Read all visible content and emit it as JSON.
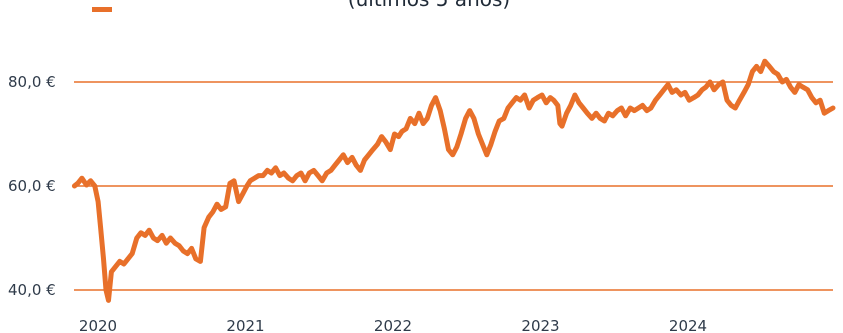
{
  "chart_data": {
    "type": "line",
    "title": "(últimos 5 años)",
    "xlabel": "",
    "ylabel": "",
    "x_ticks": [
      "2020",
      "2021",
      "2022",
      "2023",
      "2024"
    ],
    "y_ticks": [
      "40,0 €",
      "60,0 €",
      "80,0 €"
    ],
    "y_tick_values": [
      40,
      60,
      80
    ],
    "ylim": [
      38.5,
      91
    ],
    "xlim": [
      "2020-01-01",
      "2024-12-31"
    ],
    "grid": "horizontal",
    "legend": "top-left",
    "series": [
      {
        "name": "",
        "color": "#E8702A",
        "x": [
          "2020-01-02",
          "2020-01-10",
          "2020-01-20",
          "2020-01-31",
          "2020-02-10",
          "2020-02-20",
          "2020-02-28",
          "2020-03-05",
          "2020-03-12",
          "2020-03-18",
          "2020-03-24",
          "2020-03-31",
          "2020-04-10",
          "2020-04-20",
          "2020-04-30",
          "2020-05-10",
          "2020-05-20",
          "2020-05-31",
          "2020-06-10",
          "2020-06-20",
          "2020-06-30",
          "2020-07-10",
          "2020-07-20",
          "2020-07-31",
          "2020-08-10",
          "2020-08-20",
          "2020-08-31",
          "2020-09-10",
          "2020-09-20",
          "2020-09-30",
          "2020-10-10",
          "2020-10-20",
          "2020-10-31",
          "2020-11-09",
          "2020-11-20",
          "2020-11-30",
          "2020-12-10",
          "2020-12-20",
          "2020-12-31",
          "2021-01-10",
          "2021-01-20",
          "2021-01-31",
          "2021-02-10",
          "2021-02-20",
          "2021-02-28",
          "2021-03-10",
          "2021-03-20",
          "2021-03-31",
          "2021-04-10",
          "2021-04-20",
          "2021-04-30",
          "2021-05-10",
          "2021-05-20",
          "2021-05-31",
          "2021-06-10",
          "2021-06-20",
          "2021-06-30",
          "2021-07-10",
          "2021-07-20",
          "2021-07-31",
          "2021-08-10",
          "2021-08-20",
          "2021-08-31",
          "2021-09-10",
          "2021-09-20",
          "2021-09-30",
          "2021-10-10",
          "2021-10-20",
          "2021-10-31",
          "2021-11-10",
          "2021-11-20",
          "2021-11-30",
          "2021-12-10",
          "2021-12-20",
          "2021-12-31",
          "2022-01-10",
          "2022-01-20",
          "2022-01-31",
          "2022-02-10",
          "2022-02-20",
          "2022-02-28",
          "2022-03-10",
          "2022-03-20",
          "2022-03-31",
          "2022-04-10",
          "2022-04-20",
          "2022-04-30",
          "2022-05-10",
          "2022-05-20",
          "2022-05-31",
          "2022-06-10",
          "2022-06-20",
          "2022-06-30",
          "2022-07-10",
          "2022-07-20",
          "2022-07-31",
          "2022-08-10",
          "2022-08-20",
          "2022-08-31",
          "2022-09-10",
          "2022-09-20",
          "2022-09-30",
          "2022-10-10",
          "2022-10-20",
          "2022-10-31",
          "2022-11-10",
          "2022-11-20",
          "2022-11-30",
          "2022-12-10",
          "2022-12-20",
          "2022-12-31",
          "2023-01-10",
          "2023-01-20",
          "2023-01-31",
          "2023-02-10",
          "2023-02-20",
          "2023-02-28",
          "2023-03-10",
          "2023-03-15",
          "2023-03-20",
          "2023-03-31",
          "2023-04-10",
          "2023-04-20",
          "2023-04-30",
          "2023-05-10",
          "2023-05-20",
          "2023-05-31",
          "2023-06-10",
          "2023-06-20",
          "2023-06-30",
          "2023-07-10",
          "2023-07-20",
          "2023-07-31",
          "2023-08-10",
          "2023-08-20",
          "2023-08-31",
          "2023-09-10",
          "2023-09-20",
          "2023-09-30",
          "2023-10-10",
          "2023-10-20",
          "2023-10-31",
          "2023-11-10",
          "2023-11-20",
          "2023-11-30",
          "2023-12-10",
          "2023-12-20",
          "2023-12-31",
          "2024-01-10",
          "2024-01-20",
          "2024-01-31",
          "2024-02-10",
          "2024-02-20",
          "2024-02-29",
          "2024-03-10",
          "2024-03-20",
          "2024-03-31",
          "2024-04-10",
          "2024-04-20",
          "2024-04-30",
          "2024-05-10",
          "2024-05-20",
          "2024-05-31",
          "2024-06-10",
          "2024-06-20",
          "2024-06-30",
          "2024-07-10",
          "2024-07-20",
          "2024-07-31",
          "2024-08-10",
          "2024-08-20",
          "2024-08-31",
          "2024-09-10",
          "2024-09-20",
          "2024-09-30",
          "2024-10-10",
          "2024-10-20",
          "2024-10-31",
          "2024-11-10",
          "2024-11-20",
          "2024-11-30",
          "2024-12-10",
          "2024-12-20",
          "2024-12-31"
        ],
        "values": [
          60.0,
          60.5,
          61.5,
          60.2,
          61.0,
          60.0,
          57.0,
          52.0,
          46.0,
          40.0,
          38.0,
          43.5,
          44.5,
          45.5,
          45.0,
          46.0,
          47.0,
          50.0,
          51.0,
          50.5,
          51.5,
          50.0,
          49.5,
          50.5,
          49.0,
          50.0,
          49.0,
          48.5,
          47.5,
          47.0,
          48.0,
          46.0,
          45.5,
          52.0,
          54.0,
          55.0,
          56.5,
          55.5,
          56.0,
          60.5,
          61.0,
          57.0,
          58.5,
          60.0,
          61.0,
          61.5,
          62.0,
          62.0,
          63.0,
          62.5,
          63.5,
          62.0,
          62.5,
          61.5,
          61.0,
          62.0,
          62.5,
          61.0,
          62.5,
          63.0,
          62.0,
          61.0,
          62.5,
          63.0,
          64.0,
          65.0,
          66.0,
          64.5,
          65.5,
          64.0,
          63.0,
          65.0,
          66.0,
          67.0,
          68.0,
          69.5,
          68.5,
          67.0,
          70.0,
          69.5,
          70.5,
          71.0,
          73.0,
          72.0,
          74.0,
          72.0,
          73.0,
          75.5,
          77.0,
          74.5,
          71.0,
          67.0,
          66.0,
          67.5,
          70.0,
          73.0,
          74.5,
          73.0,
          70.0,
          68.0,
          66.0,
          68.0,
          70.5,
          72.5,
          73.0,
          75.0,
          76.0,
          77.0,
          76.5,
          77.5,
          75.0,
          76.5,
          77.0,
          77.5,
          76.0,
          77.0,
          76.5,
          75.5,
          72.0,
          71.5,
          74.0,
          75.5,
          77.5,
          76.0,
          75.0,
          74.0,
          73.0,
          74.0,
          73.0,
          72.5,
          74.0,
          73.5,
          74.5,
          75.0,
          73.5,
          75.0,
          74.5,
          75.0,
          75.5,
          74.5,
          75.0,
          76.5,
          77.5,
          78.5,
          79.5,
          78.0,
          78.5,
          77.5,
          78.0,
          76.5,
          77.0,
          77.5,
          78.5,
          79.0,
          80.0,
          78.5,
          79.5,
          80.0,
          76.5,
          75.5,
          75.0,
          76.5,
          78.0,
          79.5,
          82.0,
          83.0,
          82.0,
          84.0,
          83.0,
          82.0,
          81.5,
          80.0,
          80.5,
          79.0,
          78.0,
          79.5,
          79.0,
          78.5,
          77.0,
          76.0,
          76.5,
          74.0,
          74.5,
          75.0
        ]
      }
    ]
  }
}
